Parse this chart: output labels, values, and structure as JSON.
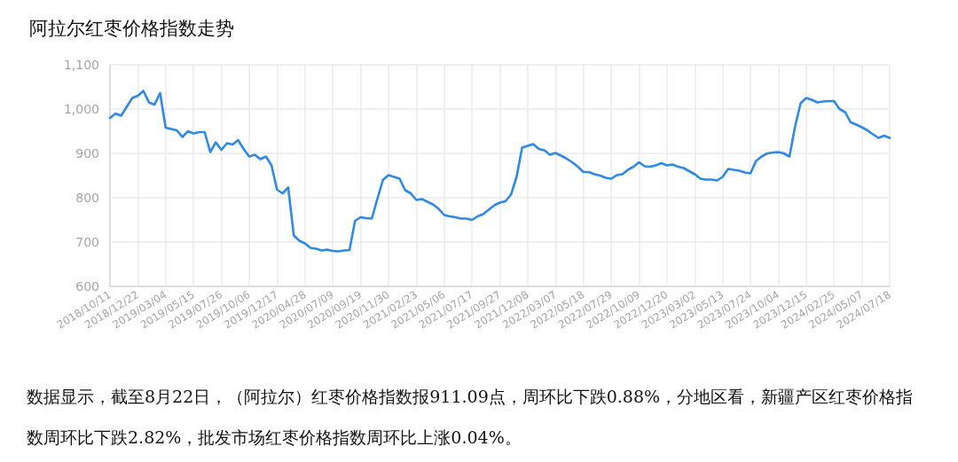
{
  "chart_data": {
    "type": "line",
    "title": "阿拉尔红枣价格指数走势",
    "categories": [
      "2018/10/11",
      null,
      null,
      null,
      null,
      "2018/12/22",
      null,
      null,
      null,
      null,
      "2019/03/04",
      null,
      null,
      null,
      null,
      "2019/05/15",
      null,
      null,
      null,
      null,
      "2019/07/26",
      null,
      null,
      null,
      null,
      "2019/10/06",
      null,
      null,
      null,
      null,
      "2019/12/17",
      null,
      null,
      null,
      null,
      "2020/04/28",
      null,
      null,
      null,
      null,
      "2020/07/09",
      null,
      null,
      null,
      null,
      "2020/09/19",
      null,
      null,
      null,
      null,
      "2020/11/30",
      null,
      null,
      null,
      null,
      "2021/02/23",
      null,
      null,
      null,
      null,
      "2021/05/06",
      null,
      null,
      null,
      null,
      "2021/07/17",
      null,
      null,
      null,
      null,
      "2021/09/27",
      null,
      null,
      null,
      null,
      "2021/12/08",
      null,
      null,
      null,
      null,
      "2022/03/07",
      null,
      null,
      null,
      null,
      "2022/05/18",
      null,
      null,
      null,
      null,
      "2022/07/29",
      null,
      null,
      null,
      null,
      "2022/10/09",
      null,
      null,
      null,
      null,
      "2022/12/20",
      null,
      null,
      null,
      null,
      "2023/03/02",
      null,
      null,
      null,
      null,
      "2023/05/13",
      null,
      null,
      null,
      null,
      "2023/07/24",
      null,
      null,
      null,
      null,
      "2023/10/04",
      null,
      null,
      null,
      null,
      "2023/12/15",
      null,
      null,
      null,
      null,
      "2024/02/25",
      null,
      null,
      null,
      null,
      "2024/05/07",
      null,
      null,
      null,
      null,
      "2024/07/18"
    ],
    "values": [
      980,
      990,
      985,
      1005,
      1025,
      1030,
      1041,
      1015,
      1010,
      1036,
      958,
      955,
      952,
      937,
      950,
      945,
      948,
      948,
      903,
      925,
      908,
      923,
      920,
      930,
      910,
      893,
      897,
      887,
      893,
      873,
      818,
      810,
      823,
      715,
      703,
      697,
      687,
      685,
      681,
      683,
      680,
      679,
      681,
      682,
      748,
      756,
      754,
      753,
      797,
      840,
      851,
      847,
      843,
      817,
      810,
      795,
      797,
      791,
      785,
      775,
      761,
      758,
      756,
      753,
      753,
      750,
      758,
      763,
      773,
      783,
      789,
      792,
      807,
      847,
      913,
      917,
      921,
      910,
      907,
      897,
      901,
      895,
      888,
      880,
      870,
      858,
      858,
      853,
      850,
      845,
      843,
      851,
      853,
      863,
      870,
      880,
      871,
      870,
      873,
      878,
      873,
      875,
      870,
      867,
      860,
      853,
      843,
      841,
      841,
      839,
      847,
      865,
      863,
      861,
      857,
      855,
      883,
      893,
      900,
      902,
      903,
      900,
      893,
      960,
      1013,
      1025,
      1021,
      1015,
      1017,
      1018,
      1018,
      1000,
      993,
      970,
      965,
      959,
      952,
      943,
      935,
      940,
      935
    ],
    "color": "#2e8ae6",
    "line_style": "solid",
    "ylim": [
      600,
      1100
    ],
    "yticks": [
      600,
      700,
      800,
      900,
      {
        "value": 1000,
        "label": "1,000"
      },
      {
        "value": 1100,
        "label": "1,100"
      }
    ],
    "grid": true,
    "annotations": [
      "数据显示，截至8月22日，（阿拉尔）红枣价格指数报911.09点，周环比下跌0.88%，分地区看，新疆产区红枣价格指数周环比下跌2.82%，批发市场红枣价格指数周环比上涨0.04%。"
    ]
  }
}
